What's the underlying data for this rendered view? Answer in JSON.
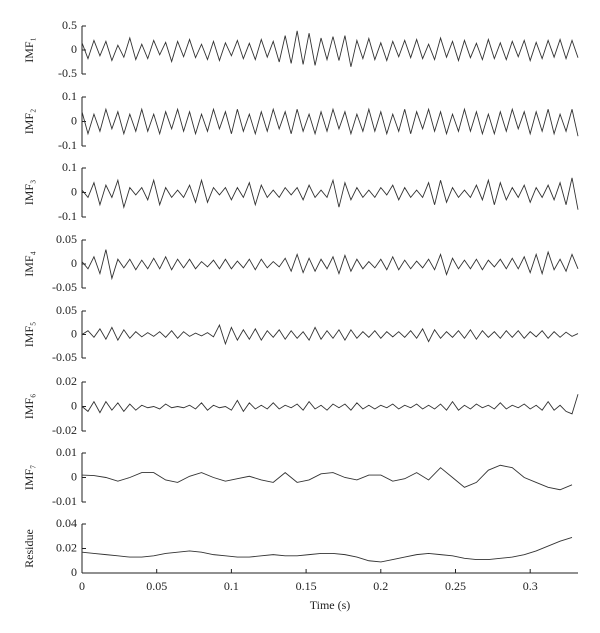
{
  "chart_data": [
    {
      "type": "line",
      "ylabel": "IMF₁",
      "color": "#333333",
      "xlim": [
        0,
        0.332
      ],
      "ylim": [
        -0.5,
        0.5
      ],
      "yticks": [
        -0.5,
        0,
        0.5
      ],
      "x": [
        0,
        0.004,
        0.008,
        0.012,
        0.016,
        0.02,
        0.024,
        0.028,
        0.032,
        0.036,
        0.04,
        0.044,
        0.048,
        0.052,
        0.056,
        0.06,
        0.064,
        0.068,
        0.072,
        0.076,
        0.08,
        0.084,
        0.088,
        0.092,
        0.096,
        0.1,
        0.104,
        0.108,
        0.112,
        0.116,
        0.12,
        0.124,
        0.128,
        0.132,
        0.136,
        0.14,
        0.144,
        0.148,
        0.152,
        0.156,
        0.16,
        0.164,
        0.168,
        0.172,
        0.176,
        0.18,
        0.184,
        0.188,
        0.192,
        0.196,
        0.2,
        0.204,
        0.208,
        0.212,
        0.216,
        0.22,
        0.224,
        0.228,
        0.232,
        0.236,
        0.24,
        0.244,
        0.248,
        0.252,
        0.256,
        0.26,
        0.264,
        0.268,
        0.272,
        0.276,
        0.28,
        0.284,
        0.288,
        0.292,
        0.296,
        0.3,
        0.304,
        0.308,
        0.312,
        0.316,
        0.32,
        0.324,
        0.328,
        0.332
      ],
      "values": [
        0.15,
        -0.18,
        0.2,
        -0.12,
        0.18,
        -0.22,
        0.1,
        -0.15,
        0.25,
        -0.2,
        0.12,
        -0.18,
        0.2,
        -0.1,
        0.16,
        -0.24,
        0.18,
        -0.14,
        0.22,
        -0.16,
        0.12,
        -0.2,
        0.18,
        -0.22,
        0.15,
        -0.12,
        0.2,
        -0.18,
        0.14,
        -0.2,
        0.22,
        -0.15,
        0.18,
        -0.25,
        0.3,
        -0.28,
        0.4,
        -0.3,
        0.35,
        -0.32,
        0.25,
        -0.2,
        0.28,
        -0.22,
        0.3,
        -0.35,
        0.2,
        -0.18,
        0.24,
        -0.2,
        0.15,
        -0.22,
        0.18,
        -0.14,
        0.2,
        -0.16,
        0.22,
        -0.18,
        0.12,
        -0.2,
        0.25,
        -0.15,
        0.18,
        -0.22,
        0.2,
        -0.16,
        0.14,
        -0.2,
        0.22,
        -0.18,
        0.15,
        -0.2,
        0.18,
        -0.14,
        0.2,
        -0.22,
        0.16,
        -0.18,
        0.2,
        -0.15,
        0.22,
        -0.18,
        0.2,
        -0.16
      ]
    },
    {
      "type": "line",
      "ylabel": "IMF₂",
      "color": "#333333",
      "xlim": [
        0,
        0.332
      ],
      "ylim": [
        -0.1,
        0.1
      ],
      "yticks": [
        -0.1,
        0,
        0.1
      ],
      "x": [
        0,
        0.004,
        0.008,
        0.012,
        0.016,
        0.02,
        0.024,
        0.028,
        0.032,
        0.036,
        0.04,
        0.044,
        0.048,
        0.052,
        0.056,
        0.06,
        0.064,
        0.068,
        0.072,
        0.076,
        0.08,
        0.084,
        0.088,
        0.092,
        0.096,
        0.1,
        0.104,
        0.108,
        0.112,
        0.116,
        0.12,
        0.124,
        0.128,
        0.132,
        0.136,
        0.14,
        0.144,
        0.148,
        0.152,
        0.156,
        0.16,
        0.164,
        0.168,
        0.172,
        0.176,
        0.18,
        0.184,
        0.188,
        0.192,
        0.196,
        0.2,
        0.204,
        0.208,
        0.212,
        0.216,
        0.22,
        0.224,
        0.228,
        0.232,
        0.236,
        0.24,
        0.244,
        0.248,
        0.252,
        0.256,
        0.26,
        0.264,
        0.268,
        0.272,
        0.276,
        0.28,
        0.284,
        0.288,
        0.292,
        0.296,
        0.3,
        0.304,
        0.308,
        0.312,
        0.316,
        0.32,
        0.324,
        0.328,
        0.332
      ],
      "values": [
        0.04,
        -0.05,
        0.03,
        -0.04,
        0.05,
        -0.03,
        0.04,
        -0.05,
        0.03,
        -0.04,
        0.05,
        -0.04,
        0.03,
        -0.05,
        0.04,
        -0.03,
        0.05,
        -0.04,
        0.04,
        -0.05,
        0.03,
        -0.04,
        0.05,
        -0.03,
        0.04,
        -0.05,
        0.05,
        -0.04,
        0.03,
        -0.05,
        0.04,
        -0.04,
        0.05,
        -0.03,
        0.04,
        -0.05,
        0.05,
        -0.04,
        0.03,
        -0.05,
        0.04,
        -0.04,
        0.05,
        -0.03,
        0.04,
        -0.05,
        0.03,
        -0.04,
        0.05,
        -0.04,
        0.04,
        -0.05,
        0.03,
        -0.04,
        0.05,
        -0.05,
        0.04,
        -0.03,
        0.05,
        -0.04,
        0.04,
        -0.05,
        0.03,
        -0.04,
        0.05,
        -0.04,
        0.04,
        -0.05,
        0.03,
        -0.05,
        0.04,
        -0.04,
        0.05,
        -0.03,
        0.04,
        -0.05,
        0.04,
        -0.04,
        0.05,
        -0.05,
        0.03,
        -0.04,
        0.05,
        -0.06
      ]
    },
    {
      "type": "line",
      "ylabel": "IMF₃",
      "color": "#333333",
      "xlim": [
        0,
        0.332
      ],
      "ylim": [
        -0.1,
        0.1
      ],
      "yticks": [
        -0.1,
        0,
        0.1
      ],
      "x": [
        0,
        0.004,
        0.008,
        0.012,
        0.016,
        0.02,
        0.024,
        0.028,
        0.032,
        0.036,
        0.04,
        0.044,
        0.048,
        0.052,
        0.056,
        0.06,
        0.064,
        0.068,
        0.072,
        0.076,
        0.08,
        0.084,
        0.088,
        0.092,
        0.096,
        0.1,
        0.104,
        0.108,
        0.112,
        0.116,
        0.12,
        0.124,
        0.128,
        0.132,
        0.136,
        0.14,
        0.144,
        0.148,
        0.152,
        0.156,
        0.16,
        0.164,
        0.168,
        0.172,
        0.176,
        0.18,
        0.184,
        0.188,
        0.192,
        0.196,
        0.2,
        0.204,
        0.208,
        0.212,
        0.216,
        0.22,
        0.224,
        0.228,
        0.232,
        0.236,
        0.24,
        0.244,
        0.248,
        0.252,
        0.256,
        0.26,
        0.264,
        0.268,
        0.272,
        0.276,
        0.28,
        0.284,
        0.288,
        0.292,
        0.296,
        0.3,
        0.304,
        0.308,
        0.312,
        0.316,
        0.32,
        0.324,
        0.328,
        0.332
      ],
      "values": [
        0.01,
        -0.02,
        0.04,
        -0.05,
        0.03,
        -0.02,
        0.05,
        -0.06,
        0.02,
        -0.01,
        0.02,
        -0.03,
        0.05,
        -0.05,
        0.02,
        -0.02,
        0.01,
        -0.02,
        0.03,
        -0.04,
        0.05,
        -0.04,
        0.02,
        -0.01,
        0.02,
        -0.03,
        0.02,
        -0.02,
        0.04,
        -0.05,
        0.03,
        -0.02,
        0.01,
        -0.02,
        0.02,
        -0.01,
        0.02,
        -0.03,
        0.03,
        -0.02,
        0.01,
        -0.02,
        0.05,
        -0.06,
        0.04,
        -0.03,
        0.02,
        -0.02,
        0.01,
        -0.02,
        0.02,
        -0.01,
        0.03,
        -0.03,
        0.02,
        -0.02,
        0.01,
        -0.02,
        0.04,
        -0.05,
        0.05,
        -0.04,
        0.02,
        -0.02,
        0.01,
        -0.02,
        0.03,
        -0.03,
        0.05,
        -0.05,
        0.04,
        -0.03,
        0.02,
        -0.02,
        0.03,
        -0.04,
        0.02,
        -0.02,
        0.03,
        -0.03,
        0.04,
        -0.05,
        0.06,
        -0.07
      ]
    },
    {
      "type": "line",
      "ylabel": "IMF₄",
      "color": "#333333",
      "xlim": [
        0,
        0.332
      ],
      "ylim": [
        -0.05,
        0.05
      ],
      "yticks": [
        -0.05,
        0,
        0.05
      ],
      "x": [
        0,
        0.004,
        0.008,
        0.012,
        0.016,
        0.02,
        0.024,
        0.028,
        0.032,
        0.036,
        0.04,
        0.044,
        0.048,
        0.052,
        0.056,
        0.06,
        0.064,
        0.068,
        0.072,
        0.076,
        0.08,
        0.084,
        0.088,
        0.092,
        0.096,
        0.1,
        0.104,
        0.108,
        0.112,
        0.116,
        0.12,
        0.124,
        0.128,
        0.132,
        0.136,
        0.14,
        0.144,
        0.148,
        0.152,
        0.156,
        0.16,
        0.164,
        0.168,
        0.172,
        0.176,
        0.18,
        0.184,
        0.188,
        0.192,
        0.196,
        0.2,
        0.204,
        0.208,
        0.212,
        0.216,
        0.22,
        0.224,
        0.228,
        0.232,
        0.236,
        0.24,
        0.244,
        0.248,
        0.252,
        0.256,
        0.26,
        0.264,
        0.268,
        0.272,
        0.276,
        0.28,
        0.284,
        0.288,
        0.292,
        0.296,
        0.3,
        0.304,
        0.308,
        0.312,
        0.316,
        0.32,
        0.324,
        0.328,
        0.332
      ],
      "values": [
        0.005,
        -0.01,
        0.015,
        -0.02,
        0.03,
        -0.03,
        0.01,
        -0.008,
        0.01,
        -0.012,
        0.008,
        -0.01,
        0.012,
        -0.01,
        0.015,
        -0.012,
        0.01,
        -0.008,
        0.01,
        -0.01,
        0.005,
        -0.006,
        0.008,
        -0.01,
        0.01,
        -0.01,
        0.006,
        -0.008,
        0.01,
        -0.012,
        0.01,
        -0.008,
        0.005,
        -0.006,
        0.012,
        -0.015,
        0.02,
        -0.018,
        0.012,
        -0.015,
        0.01,
        -0.01,
        0.015,
        -0.02,
        0.018,
        -0.015,
        0.01,
        -0.01,
        0.005,
        -0.008,
        0.01,
        -0.012,
        0.015,
        -0.012,
        0.008,
        -0.01,
        0.006,
        -0.008,
        0.01,
        -0.012,
        0.02,
        -0.022,
        0.012,
        -0.01,
        0.008,
        -0.01,
        0.01,
        -0.012,
        0.008,
        -0.006,
        0.01,
        -0.01,
        0.012,
        -0.01,
        0.015,
        -0.018,
        0.02,
        -0.02,
        0.025,
        -0.012,
        0.01,
        -0.015,
        0.02,
        -0.01
      ]
    },
    {
      "type": "line",
      "ylabel": "IMF₅",
      "color": "#333333",
      "xlim": [
        0,
        0.332
      ],
      "ylim": [
        -0.05,
        0.05
      ],
      "yticks": [
        -0.05,
        0,
        0.05
      ],
      "x": [
        0,
        0.004,
        0.008,
        0.012,
        0.016,
        0.02,
        0.024,
        0.028,
        0.032,
        0.036,
        0.04,
        0.044,
        0.048,
        0.052,
        0.056,
        0.06,
        0.064,
        0.068,
        0.072,
        0.076,
        0.08,
        0.084,
        0.088,
        0.092,
        0.096,
        0.1,
        0.104,
        0.108,
        0.112,
        0.116,
        0.12,
        0.124,
        0.128,
        0.132,
        0.136,
        0.14,
        0.144,
        0.148,
        0.152,
        0.156,
        0.16,
        0.164,
        0.168,
        0.172,
        0.176,
        0.18,
        0.184,
        0.188,
        0.192,
        0.196,
        0.2,
        0.204,
        0.208,
        0.212,
        0.216,
        0.22,
        0.224,
        0.228,
        0.232,
        0.236,
        0.24,
        0.244,
        0.248,
        0.252,
        0.256,
        0.26,
        0.264,
        0.268,
        0.272,
        0.276,
        0.28,
        0.284,
        0.288,
        0.292,
        0.296,
        0.3,
        0.304,
        0.308,
        0.312,
        0.316,
        0.32,
        0.324,
        0.328,
        0.332
      ],
      "values": [
        0,
        0.008,
        -0.006,
        0.012,
        -0.01,
        0.015,
        -0.012,
        0.01,
        -0.008,
        0.006,
        -0.005,
        0.004,
        -0.004,
        0.006,
        -0.006,
        0.008,
        -0.008,
        0.006,
        -0.004,
        0.003,
        -0.003,
        0.004,
        -0.005,
        0.02,
        -0.02,
        0.015,
        -0.012,
        0.01,
        -0.01,
        0.012,
        -0.012,
        0.008,
        -0.006,
        0.01,
        -0.01,
        0.008,
        -0.008,
        0.006,
        -0.012,
        0.015,
        -0.01,
        0.008,
        -0.008,
        0.01,
        -0.012,
        0.01,
        -0.008,
        0.006,
        -0.006,
        0.008,
        -0.008,
        0.006,
        -0.005,
        0.006,
        -0.006,
        0.008,
        -0.008,
        0.012,
        -0.015,
        0.01,
        -0.008,
        0.006,
        -0.006,
        0.008,
        -0.008,
        0.01,
        -0.01,
        0.008,
        -0.006,
        0.006,
        -0.008,
        0.008,
        -0.006,
        0.008,
        -0.008,
        0.006,
        -0.005,
        0.008,
        -0.008,
        0.006,
        -0.006,
        0.005,
        -0.004,
        0.002
      ]
    },
    {
      "type": "line",
      "ylabel": "IMF₆",
      "color": "#333333",
      "xlim": [
        0,
        0.332
      ],
      "ylim": [
        -0.02,
        0.02
      ],
      "yticks": [
        -0.02,
        0,
        0.02
      ],
      "x": [
        0,
        0.004,
        0.008,
        0.012,
        0.016,
        0.02,
        0.024,
        0.028,
        0.032,
        0.036,
        0.04,
        0.044,
        0.048,
        0.052,
        0.056,
        0.06,
        0.064,
        0.068,
        0.072,
        0.076,
        0.08,
        0.084,
        0.088,
        0.092,
        0.096,
        0.1,
        0.104,
        0.108,
        0.112,
        0.116,
        0.12,
        0.124,
        0.128,
        0.132,
        0.136,
        0.14,
        0.144,
        0.148,
        0.152,
        0.156,
        0.16,
        0.164,
        0.168,
        0.172,
        0.176,
        0.18,
        0.184,
        0.188,
        0.192,
        0.196,
        0.2,
        0.204,
        0.208,
        0.212,
        0.216,
        0.22,
        0.224,
        0.228,
        0.232,
        0.236,
        0.24,
        0.244,
        0.248,
        0.252,
        0.256,
        0.26,
        0.264,
        0.268,
        0.272,
        0.276,
        0.28,
        0.284,
        0.288,
        0.292,
        0.296,
        0.3,
        0.304,
        0.308,
        0.312,
        0.316,
        0.32,
        0.324,
        0.328,
        0.332
      ],
      "values": [
        0,
        -0.004,
        0.004,
        -0.005,
        0.004,
        -0.003,
        0.003,
        -0.004,
        0.002,
        -0.003,
        0.001,
        -0.001,
        0,
        -0.002,
        0.002,
        -0.001,
        0,
        -0.001,
        0.001,
        -0.002,
        0.003,
        -0.003,
        0.001,
        -0.001,
        0,
        -0.003,
        0.005,
        -0.004,
        0.003,
        -0.002,
        0.001,
        -0.002,
        0.003,
        -0.002,
        0.001,
        -0.001,
        0.002,
        -0.003,
        0.004,
        -0.002,
        0.001,
        -0.003,
        0.002,
        -0.001,
        0.002,
        -0.003,
        0.003,
        -0.002,
        0.001,
        -0.002,
        0.001,
        -0.001,
        0.002,
        -0.002,
        0.001,
        -0.001,
        0.002,
        -0.002,
        0.001,
        -0.002,
        0.002,
        -0.003,
        0.004,
        -0.003,
        0.001,
        -0.002,
        0.002,
        -0.001,
        0.001,
        -0.002,
        0.003,
        -0.002,
        0.001,
        -0.001,
        0.002,
        -0.002,
        0.001,
        -0.003,
        0.004,
        -0.003,
        0.001,
        -0.004,
        -0.006,
        0.01
      ]
    },
    {
      "type": "line",
      "ylabel": "IMF₇",
      "color": "#333333",
      "xlim": [
        0,
        0.332
      ],
      "ylim": [
        -0.01,
        0.01
      ],
      "yticks": [
        -0.01,
        0,
        0.01
      ],
      "x": [
        0,
        0.008,
        0.016,
        0.024,
        0.032,
        0.04,
        0.048,
        0.056,
        0.064,
        0.072,
        0.08,
        0.088,
        0.096,
        0.104,
        0.112,
        0.12,
        0.128,
        0.136,
        0.144,
        0.152,
        0.16,
        0.168,
        0.176,
        0.184,
        0.192,
        0.2,
        0.208,
        0.216,
        0.224,
        0.232,
        0.24,
        0.248,
        0.256,
        0.264,
        0.272,
        0.28,
        0.288,
        0.296,
        0.304,
        0.312,
        0.32,
        0.328
      ],
      "values": [
        0.001,
        0.0008,
        0,
        -0.0015,
        0,
        0.002,
        0.002,
        -0.001,
        -0.002,
        0.0005,
        0.002,
        0,
        -0.0015,
        -0.0005,
        0.0005,
        -0.001,
        -0.002,
        0.002,
        -0.002,
        -0.001,
        0.0015,
        0.002,
        0,
        -0.001,
        0.001,
        0.001,
        -0.0015,
        -0.0005,
        0.002,
        -0.001,
        0.004,
        0,
        -0.004,
        -0.002,
        0.003,
        0.005,
        0.004,
        0,
        -0.002,
        -0.004,
        -0.005,
        -0.003
      ]
    },
    {
      "type": "line",
      "ylabel": "Residue",
      "xlabel": "Time (s)",
      "color": "#333333",
      "xlim": [
        0,
        0.332
      ],
      "ylim": [
        0,
        0.04
      ],
      "yticks": [
        0,
        0.02,
        0.04
      ],
      "xticks": [
        0,
        0.05,
        0.1,
        0.15,
        0.2,
        0.25,
        0.3
      ],
      "x": [
        0,
        0.008,
        0.016,
        0.024,
        0.032,
        0.04,
        0.048,
        0.056,
        0.064,
        0.072,
        0.08,
        0.088,
        0.096,
        0.104,
        0.112,
        0.12,
        0.128,
        0.136,
        0.144,
        0.152,
        0.16,
        0.168,
        0.176,
        0.184,
        0.192,
        0.2,
        0.208,
        0.216,
        0.224,
        0.232,
        0.24,
        0.248,
        0.256,
        0.264,
        0.272,
        0.28,
        0.288,
        0.296,
        0.304,
        0.312,
        0.32,
        0.328
      ],
      "values": [
        0.017,
        0.016,
        0.015,
        0.014,
        0.013,
        0.013,
        0.014,
        0.016,
        0.017,
        0.018,
        0.017,
        0.015,
        0.014,
        0.013,
        0.013,
        0.014,
        0.015,
        0.014,
        0.014,
        0.015,
        0.016,
        0.016,
        0.015,
        0.013,
        0.01,
        0.009,
        0.011,
        0.013,
        0.015,
        0.016,
        0.015,
        0.014,
        0.012,
        0.011,
        0.011,
        0.012,
        0.013,
        0.015,
        0.018,
        0.022,
        0.026,
        0.029
      ]
    }
  ]
}
